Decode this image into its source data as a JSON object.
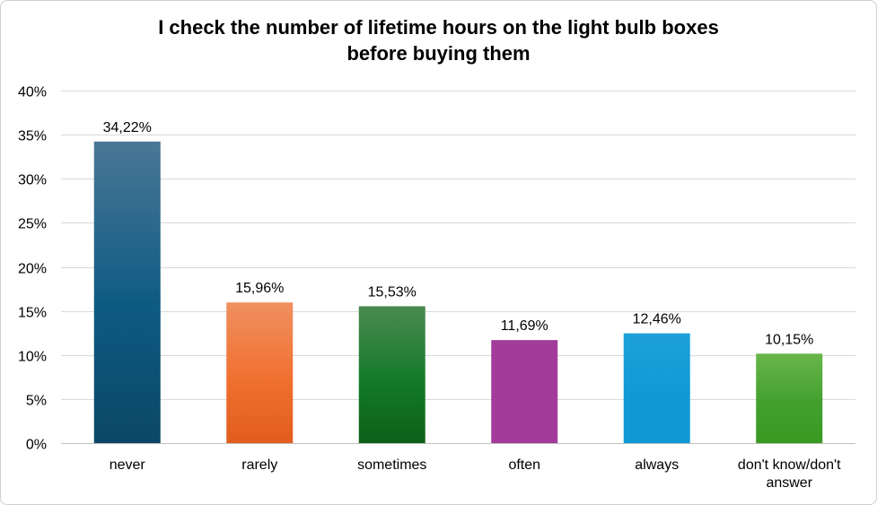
{
  "chart_data": {
    "type": "bar",
    "title": [
      "I check the number of lifetime hours on the light bulb boxes",
      "before buying them"
    ],
    "xlabel": "",
    "ylabel": "",
    "categories": [
      [
        "never"
      ],
      [
        "rarely"
      ],
      [
        "sometimes"
      ],
      [
        "often"
      ],
      [
        "always"
      ],
      [
        "don't know/don't",
        "answer"
      ]
    ],
    "values": [
      34.22,
      15.96,
      15.53,
      11.69,
      12.46,
      10.15
    ],
    "value_labels": [
      "34,22%",
      "15,96%",
      "15,53%",
      "11,69%",
      "12,46%",
      "10,15%"
    ],
    "ylim": [
      0,
      40
    ],
    "yticks": [
      0,
      5,
      10,
      15,
      20,
      25,
      30,
      35,
      40
    ],
    "ytick_labels": [
      "0%",
      "5%",
      "10%",
      "15%",
      "20%",
      "25%",
      "30%",
      "35%",
      "40%"
    ],
    "grid": true,
    "legend": "none",
    "colors": [
      [
        "#4a7796",
        "#0d5a82",
        "#0b4766"
      ],
      [
        "#f09060",
        "#f07030",
        "#e15d1e"
      ],
      [
        "#4a8a50",
        "#137a2a",
        "#0d6019"
      ],
      [
        "#a23b9a",
        "#a23b9a",
        "#a23b9a"
      ],
      [
        "#1ea1d8",
        "#0f9ad5",
        "#0f9ad5"
      ],
      [
        "#68b64a",
        "#43a02e",
        "#389a22"
      ]
    ]
  }
}
